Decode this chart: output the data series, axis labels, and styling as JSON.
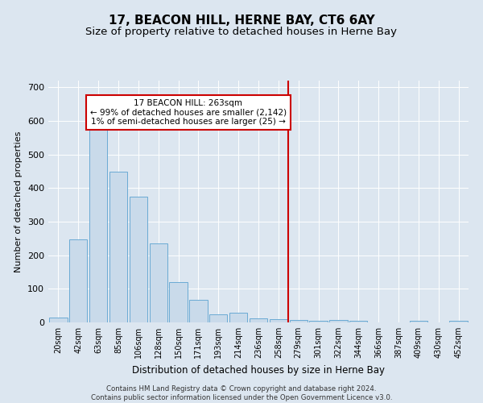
{
  "title": "17, BEACON HILL, HERNE BAY, CT6 6AY",
  "subtitle": "Size of property relative to detached houses in Herne Bay",
  "xlabel": "Distribution of detached houses by size in Herne Bay",
  "ylabel": "Number of detached properties",
  "footer_line1": "Contains HM Land Registry data © Crown copyright and database right 2024.",
  "footer_line2": "Contains public sector information licensed under the Open Government Licence v3.0.",
  "categories": [
    "20sqm",
    "42sqm",
    "63sqm",
    "85sqm",
    "106sqm",
    "128sqm",
    "150sqm",
    "171sqm",
    "193sqm",
    "214sqm",
    "236sqm",
    "258sqm",
    "279sqm",
    "301sqm",
    "322sqm",
    "344sqm",
    "366sqm",
    "387sqm",
    "409sqm",
    "430sqm",
    "452sqm"
  ],
  "values": [
    15,
    248,
    583,
    450,
    375,
    235,
    120,
    68,
    23,
    30,
    12,
    10,
    8,
    6,
    7,
    6,
    0,
    0,
    5,
    0,
    4
  ],
  "bar_color": "#c9daea",
  "bar_edge_color": "#6aaad4",
  "vline_x": 11.5,
  "vline_color": "#cc0000",
  "annotation_title": "17 BEACON HILL: 263sqm",
  "annotation_line1": "← 99% of detached houses are smaller (2,142)",
  "annotation_line2": "1% of semi-detached houses are larger (25) →",
  "annotation_box_color": "#ffffff",
  "annotation_border_color": "#cc0000",
  "ylim": [
    0,
    720
  ],
  "yticks": [
    0,
    100,
    200,
    300,
    400,
    500,
    600,
    700
  ],
  "background_color": "#dce6f0",
  "plot_bg_color": "#dce6f0",
  "title_fontsize": 11,
  "subtitle_fontsize": 9.5
}
